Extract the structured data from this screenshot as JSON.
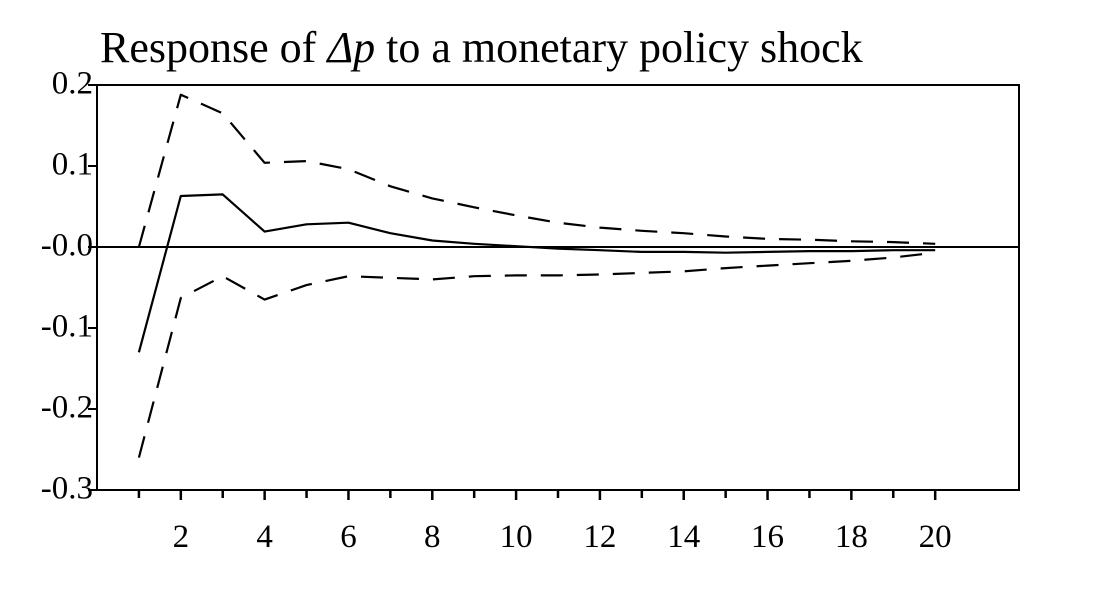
{
  "chart_data": {
    "type": "line",
    "title": {
      "prefix": "Response of ",
      "symbol": "Δp",
      "suffix": " to a monetary policy shock"
    },
    "xlabel": "",
    "ylabel": "",
    "xlim": [
      0,
      22
    ],
    "ylim": [
      -0.3,
      0.2
    ],
    "grid": false,
    "legend": "none",
    "y_ticks": [
      {
        "value": 0.2,
        "label": "0.2"
      },
      {
        "value": 0.1,
        "label": "0.1"
      },
      {
        "value": 0.0,
        "label": "-0.0"
      },
      {
        "value": -0.1,
        "label": "-0.1"
      },
      {
        "value": -0.2,
        "label": "-0.2"
      },
      {
        "value": -0.3,
        "label": "-0.3"
      }
    ],
    "x_ticks": [
      {
        "value": 2,
        "label": "2"
      },
      {
        "value": 4,
        "label": "4"
      },
      {
        "value": 6,
        "label": "6"
      },
      {
        "value": 8,
        "label": "8"
      },
      {
        "value": 10,
        "label": "10"
      },
      {
        "value": 12,
        "label": "12"
      },
      {
        "value": 14,
        "label": "14"
      },
      {
        "value": 16,
        "label": "16"
      },
      {
        "value": 18,
        "label": "18"
      },
      {
        "value": 20,
        "label": "20"
      }
    ],
    "x_minor_ticks": [
      1,
      3,
      5,
      7,
      9,
      11,
      13,
      15,
      17,
      19
    ],
    "x": [
      1,
      2,
      3,
      4,
      5,
      6,
      7,
      8,
      9,
      10,
      11,
      12,
      13,
      14,
      15,
      16,
      17,
      18,
      19,
      20
    ],
    "series": [
      {
        "name": "impulse response",
        "style": "solid",
        "color": "#000000",
        "values": [
          -0.13,
          0.063,
          0.065,
          0.019,
          0.028,
          0.03,
          0.017,
          0.008,
          0.004,
          0.001,
          -0.002,
          -0.004,
          -0.006,
          -0.006,
          -0.007,
          -0.006,
          -0.005,
          -0.005,
          -0.004,
          -0.004
        ]
      },
      {
        "name": "upper confidence band",
        "style": "dashed",
        "color": "#000000",
        "values": [
          0.0,
          0.188,
          0.165,
          0.104,
          0.106,
          0.096,
          0.075,
          0.06,
          0.049,
          0.039,
          0.03,
          0.024,
          0.02,
          0.017,
          0.013,
          0.01,
          0.009,
          0.007,
          0.006,
          0.004
        ]
      },
      {
        "name": "lower confidence band",
        "style": "dashed",
        "color": "#000000",
        "values": [
          -0.26,
          -0.063,
          -0.036,
          -0.065,
          -0.047,
          -0.036,
          -0.038,
          -0.04,
          -0.036,
          -0.035,
          -0.035,
          -0.034,
          -0.032,
          -0.03,
          -0.026,
          -0.023,
          -0.02,
          -0.017,
          -0.013,
          -0.007
        ]
      }
    ],
    "reference_line": {
      "name": "zero line",
      "value": 0.0
    }
  }
}
